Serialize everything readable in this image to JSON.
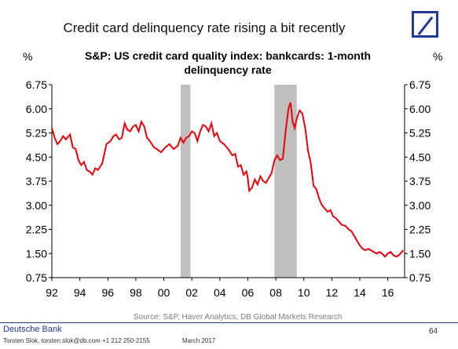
{
  "header": {
    "title": "Credit card delinquency rate rising a bit recently",
    "logo": "deutsche-bank-logo"
  },
  "chart_data": {
    "type": "line",
    "title": "S&P: US credit card quality index: bankcards: 1-month delinquency rate",
    "unit_left": "%",
    "unit_right": "%",
    "ylim": [
      0.75,
      6.75
    ],
    "yticks": [
      "6.75",
      "6.00",
      "5.25",
      "4.50",
      "3.75",
      "3.00",
      "2.25",
      "1.50",
      "0.75"
    ],
    "xlim": [
      1992,
      2017.2
    ],
    "xticks": [
      {
        "year": 1992,
        "label": "92"
      },
      {
        "year": 1994,
        "label": "94"
      },
      {
        "year": 1996,
        "label": "96"
      },
      {
        "year": 1998,
        "label": "98"
      },
      {
        "year": 2000,
        "label": "00"
      },
      {
        "year": 2002,
        "label": "02"
      },
      {
        "year": 2004,
        "label": "04"
      },
      {
        "year": 2006,
        "label": "06"
      },
      {
        "year": 2008,
        "label": "08"
      },
      {
        "year": 2010,
        "label": "10"
      },
      {
        "year": 2012,
        "label": "12"
      },
      {
        "year": 2014,
        "label": "14"
      },
      {
        "year": 2016,
        "label": "16"
      }
    ],
    "recessions": [
      [
        2001.2,
        2001.9
      ],
      [
        2007.9,
        2009.5
      ]
    ],
    "line_color": "#e8000b",
    "recession_color": "#bfbfbf",
    "series": [
      {
        "values": [
          [
            1992.0,
            5.4
          ],
          [
            1992.2,
            5.1
          ],
          [
            1992.4,
            4.9
          ],
          [
            1992.6,
            5.0
          ],
          [
            1992.8,
            5.15
          ],
          [
            1993.0,
            5.05
          ],
          [
            1993.3,
            5.2
          ],
          [
            1993.5,
            4.8
          ],
          [
            1993.7,
            4.75
          ],
          [
            1993.9,
            4.4
          ],
          [
            1994.1,
            4.25
          ],
          [
            1994.3,
            4.35
          ],
          [
            1994.5,
            4.1
          ],
          [
            1994.7,
            4.05
          ],
          [
            1994.9,
            3.95
          ],
          [
            1995.1,
            4.15
          ],
          [
            1995.3,
            4.1
          ],
          [
            1995.6,
            4.3
          ],
          [
            1995.9,
            4.9
          ],
          [
            1996.2,
            5.0
          ],
          [
            1996.4,
            5.15
          ],
          [
            1996.6,
            5.2
          ],
          [
            1996.8,
            5.05
          ],
          [
            1997.0,
            5.1
          ],
          [
            1997.2,
            5.55
          ],
          [
            1997.4,
            5.35
          ],
          [
            1997.6,
            5.3
          ],
          [
            1997.8,
            5.45
          ],
          [
            1998.0,
            5.5
          ],
          [
            1998.2,
            5.3
          ],
          [
            1998.4,
            5.6
          ],
          [
            1998.6,
            5.45
          ],
          [
            1998.8,
            5.1
          ],
          [
            1999.0,
            5.0
          ],
          [
            1999.3,
            4.8
          ],
          [
            1999.5,
            4.75
          ],
          [
            1999.8,
            4.65
          ],
          [
            2000.1,
            4.8
          ],
          [
            2000.4,
            4.9
          ],
          [
            2000.7,
            4.75
          ],
          [
            2001.0,
            4.85
          ],
          [
            2001.2,
            5.1
          ],
          [
            2001.4,
            4.95
          ],
          [
            2001.6,
            5.1
          ],
          [
            2001.8,
            5.15
          ],
          [
            2002.0,
            5.3
          ],
          [
            2002.2,
            5.25
          ],
          [
            2002.4,
            5.0
          ],
          [
            2002.6,
            5.3
          ],
          [
            2002.8,
            5.5
          ],
          [
            2003.0,
            5.45
          ],
          [
            2003.2,
            5.3
          ],
          [
            2003.4,
            5.55
          ],
          [
            2003.6,
            5.15
          ],
          [
            2003.8,
            5.25
          ],
          [
            2004.0,
            5.0
          ],
          [
            2004.3,
            4.9
          ],
          [
            2004.6,
            4.75
          ],
          [
            2004.9,
            4.55
          ],
          [
            2005.1,
            4.6
          ],
          [
            2005.3,
            4.2
          ],
          [
            2005.5,
            4.25
          ],
          [
            2005.7,
            3.95
          ],
          [
            2005.9,
            4.05
          ],
          [
            2006.0,
            3.85
          ],
          [
            2006.1,
            3.45
          ],
          [
            2006.3,
            3.55
          ],
          [
            2006.5,
            3.8
          ],
          [
            2006.7,
            3.65
          ],
          [
            2006.9,
            3.9
          ],
          [
            2007.1,
            3.75
          ],
          [
            2007.3,
            3.7
          ],
          [
            2007.5,
            3.85
          ],
          [
            2007.7,
            4.0
          ],
          [
            2007.9,
            4.4
          ],
          [
            2008.1,
            4.55
          ],
          [
            2008.3,
            4.4
          ],
          [
            2008.5,
            4.45
          ],
          [
            2008.7,
            5.3
          ],
          [
            2008.9,
            6.0
          ],
          [
            2009.05,
            6.2
          ],
          [
            2009.2,
            5.6
          ],
          [
            2009.35,
            5.4
          ],
          [
            2009.5,
            5.7
          ],
          [
            2009.7,
            5.95
          ],
          [
            2009.9,
            5.85
          ],
          [
            2010.1,
            5.4
          ],
          [
            2010.3,
            4.7
          ],
          [
            2010.5,
            4.3
          ],
          [
            2010.7,
            3.6
          ],
          [
            2010.9,
            3.5
          ],
          [
            2011.1,
            3.2
          ],
          [
            2011.3,
            3.0
          ],
          [
            2011.5,
            2.9
          ],
          [
            2011.7,
            2.8
          ],
          [
            2011.9,
            2.85
          ],
          [
            2012.1,
            2.65
          ],
          [
            2012.3,
            2.6
          ],
          [
            2012.5,
            2.5
          ],
          [
            2012.7,
            2.4
          ],
          [
            2013.0,
            2.35
          ],
          [
            2013.2,
            2.25
          ],
          [
            2013.4,
            2.2
          ],
          [
            2013.6,
            2.05
          ],
          [
            2013.8,
            1.9
          ],
          [
            2014.0,
            1.75
          ],
          [
            2014.2,
            1.65
          ],
          [
            2014.4,
            1.6
          ],
          [
            2014.6,
            1.65
          ],
          [
            2014.8,
            1.6
          ],
          [
            2015.0,
            1.55
          ],
          [
            2015.2,
            1.5
          ],
          [
            2015.4,
            1.55
          ],
          [
            2015.6,
            1.5
          ],
          [
            2015.8,
            1.4
          ],
          [
            2016.0,
            1.5
          ],
          [
            2016.2,
            1.55
          ],
          [
            2016.4,
            1.45
          ],
          [
            2016.6,
            1.4
          ],
          [
            2016.8,
            1.45
          ],
          [
            2017.0,
            1.55
          ],
          [
            2017.1,
            1.6
          ]
        ]
      }
    ]
  },
  "source": "Source:  S&P, Haver Analytics, DB Global Markets Research",
  "footer": {
    "brand": "Deutsche Bank",
    "author": "Torsten Slok, torsten.slok@db.com +1 212 250-2155",
    "date": "March 2017",
    "page": "64"
  }
}
